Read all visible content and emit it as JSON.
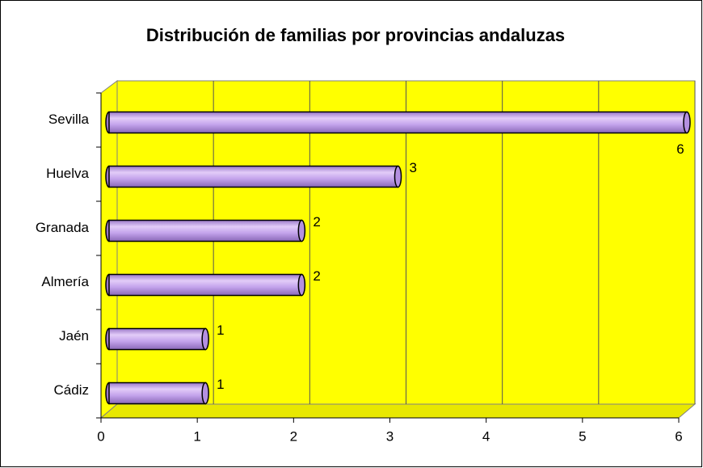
{
  "chart_data": {
    "type": "bar",
    "orientation": "horizontal",
    "title": "Distribución de familias por provincias andaluzas",
    "categories": [
      "Sevilla",
      "Huelva",
      "Granada",
      "Almería",
      "Jaén",
      "Cádiz"
    ],
    "values": [
      6,
      3,
      2,
      2,
      1,
      1
    ],
    "color": "#b490e0",
    "xlim": [
      0,
      6
    ],
    "xticks": [
      0,
      1,
      2,
      3,
      4,
      5,
      6
    ],
    "grid": true
  }
}
